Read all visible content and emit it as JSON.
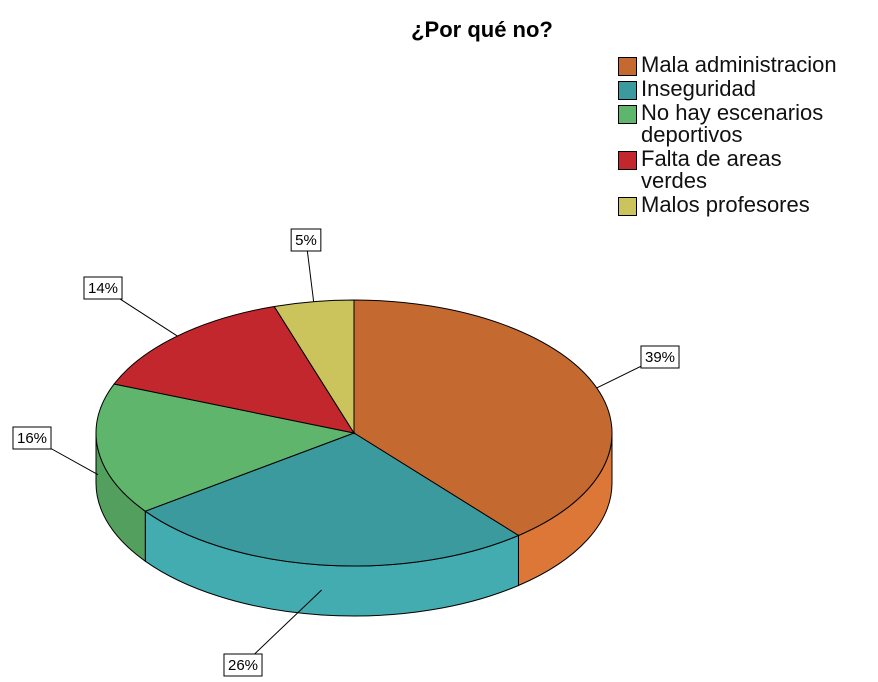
{
  "chart_data": {
    "type": "pie",
    "title": "¿Por qué no?",
    "categories": [
      "Mala administracion",
      "Inseguridad",
      "No hay escenarios deportivos",
      "Falta de areas verdes",
      "Malos profesores"
    ],
    "values": [
      39,
      26,
      16,
      14,
      5
    ],
    "value_labels": [
      "39%",
      "26%",
      "16%",
      "14%",
      "5%"
    ],
    "colors": [
      "#c46a31",
      "#3b9a9e",
      "#5eb56b",
      "#c1272d",
      "#cbc45d"
    ],
    "legend": "top-right"
  }
}
